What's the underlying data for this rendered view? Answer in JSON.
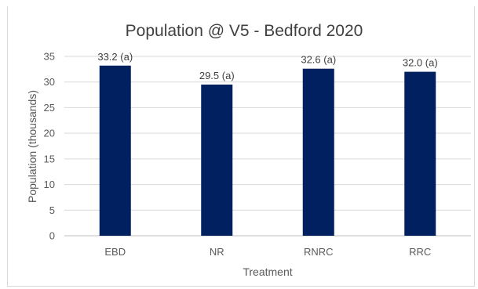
{
  "chart_data": {
    "type": "bar",
    "title": "Population @ V5 - Bedford 2020",
    "xlabel": "Treatment",
    "ylabel": "Population (thousands)",
    "categories": [
      "EBD",
      "NR",
      "RNRC",
      "RRC"
    ],
    "values": [
      33.2,
      29.5,
      32.6,
      32.0
    ],
    "data_labels": [
      "33.2 (a)",
      "29.5 (a)",
      "32.6 (a)",
      "32.0 (a)"
    ],
    "ylim": [
      0,
      35
    ],
    "yticks": [
      0,
      5,
      10,
      15,
      20,
      25,
      30,
      35
    ],
    "grid": true,
    "legend": "none",
    "bar_color": "#002060"
  }
}
